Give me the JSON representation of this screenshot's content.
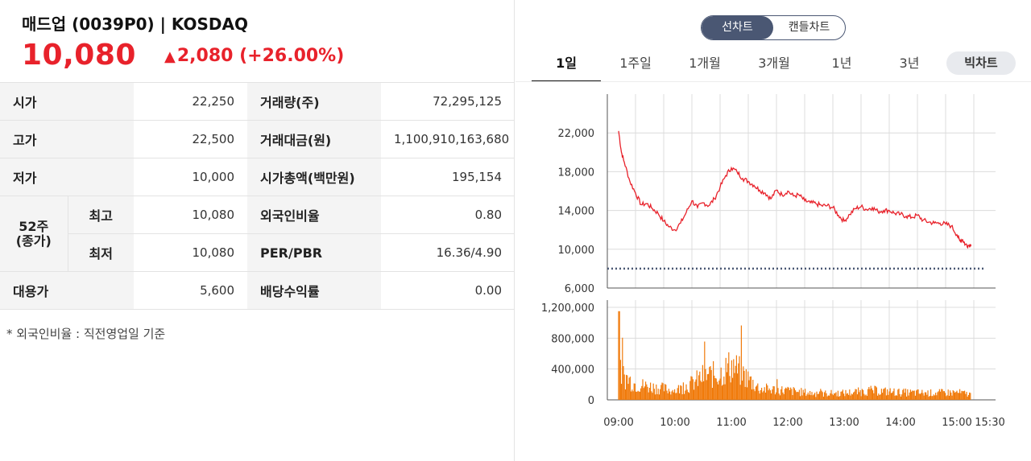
{
  "stock": {
    "title": "매드업 (0039P0) | KOSDAQ",
    "price": "10,080",
    "change_arrow": "▲",
    "change": "2,080 (+26.00%)"
  },
  "table": {
    "r1": {
      "l1": "시가",
      "v1": "22,250",
      "l2": "거래량(주)",
      "v2": "72,295,125"
    },
    "r2": {
      "l1": "고가",
      "v1": "22,500",
      "l2": "거래대금(원)",
      "v2": "1,100,910,163,680"
    },
    "r3": {
      "l1": "저가",
      "v1": "10,000",
      "l2": "시가총액(백만원)",
      "v2": "195,154"
    },
    "r4": {
      "group": "52주\n(종가)",
      "sub": "최고",
      "v1": "10,080",
      "l2": "외국인비율",
      "v2": "0.80"
    },
    "r5": {
      "sub": "최저",
      "v1": "10,080",
      "l2": "PER/PBR",
      "v2": "16.36/4.90"
    },
    "r6": {
      "l1": "대용가",
      "v1": "5,600",
      "l2": "배당수익률",
      "v2": "0.00"
    },
    "note": "* 외국인비율 : 직전영업일 기준"
  },
  "chart_toggle": {
    "line": "선차트",
    "candle": "캔들차트"
  },
  "tabs": [
    "1일",
    "1주일",
    "1개월",
    "3개월",
    "1년",
    "3년"
  ],
  "bigchart_label": "빅차트",
  "colors": {
    "up": "#e8222b",
    "toggle": "#4a5773",
    "volume": "#f07a0a",
    "price_line": "#e8222b",
    "ref_line": "#4a5773"
  },
  "chart_data": {
    "type": "line",
    "x_ticks": [
      "09:00",
      "10:00",
      "11:00",
      "12:00",
      "13:00",
      "14:00",
      "15:00",
      "15:30"
    ],
    "price": {
      "y_ticks": [
        "22,000",
        "18,000",
        "14,000",
        "10,000",
        "6,000"
      ],
      "ylim": [
        6000,
        26000
      ],
      "reference": 8000,
      "x": [
        0,
        0.05,
        0.1,
        0.2,
        0.3,
        0.4,
        0.5,
        0.6,
        0.7,
        0.8,
        0.9,
        1.0,
        1.1,
        1.2,
        1.3,
        1.4,
        1.5,
        1.6,
        1.7,
        1.8,
        1.9,
        2.0,
        2.1,
        2.2,
        2.3,
        2.4,
        2.5,
        2.6,
        2.7,
        2.8,
        2.9,
        3.0,
        3.1,
        3.2,
        3.3,
        3.4,
        3.5,
        3.6,
        3.7,
        3.8,
        3.9,
        4.0,
        4.1,
        4.2,
        4.3,
        4.4,
        4.5,
        4.6,
        4.7,
        4.8,
        4.9,
        5.0,
        5.1,
        5.2,
        5.3,
        5.4,
        5.5,
        5.6,
        5.7,
        5.8,
        5.9,
        6.0,
        6.05,
        6.1,
        6.15,
        6.2,
        6.25
      ],
      "y": [
        22200,
        20000,
        19000,
        17000,
        15800,
        14600,
        14700,
        14200,
        13700,
        12900,
        12300,
        12000,
        12700,
        13800,
        15000,
        14300,
        14800,
        14500,
        15200,
        16400,
        17600,
        18400,
        18000,
        17300,
        17000,
        16600,
        16100,
        15800,
        15200,
        16100,
        15600,
        16000,
        15500,
        15600,
        15000,
        14800,
        14700,
        14500,
        14500,
        14300,
        13500,
        12900,
        13600,
        14200,
        14400,
        14100,
        14300,
        13900,
        14000,
        14000,
        13700,
        13600,
        13400,
        13300,
        13500,
        13000,
        12800,
        12700,
        12700,
        12600,
        12400,
        11500,
        10900,
        11000,
        10500,
        10400,
        10500
      ]
    },
    "volume": {
      "y_ticks": [
        "1,200,000",
        "800,000",
        "400,000",
        "0"
      ],
      "ylim": [
        0,
        1200000
      ]
    }
  }
}
